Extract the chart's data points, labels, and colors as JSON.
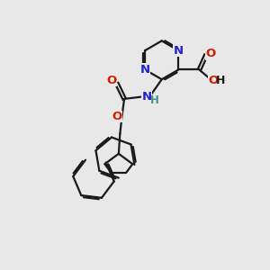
{
  "bg_color": "#e8e8e8",
  "bond_color": "#1a1a1a",
  "N_color": "#2222cc",
  "O_color": "#cc2200",
  "NH_color": "#4a9090",
  "line_width": 1.6,
  "font_size": 9.5,
  "fig_bg": "#e8e8e8",
  "xlim": [
    0,
    10
  ],
  "ylim": [
    0,
    10
  ]
}
